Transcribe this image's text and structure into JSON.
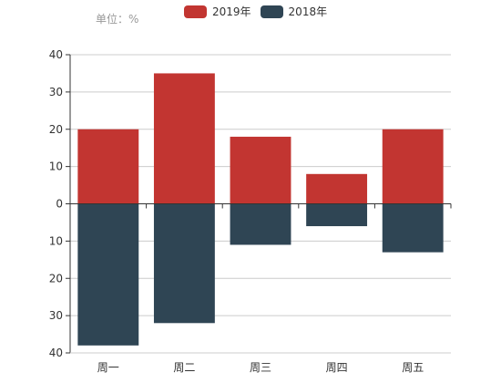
{
  "unit_text": "单位：%",
  "legend": [
    {
      "name": "2019年",
      "color": "#c23531"
    },
    {
      "name": "2018年",
      "color": "#2f4554"
    }
  ],
  "chart_data": {
    "type": "bar",
    "categories": [
      "周一",
      "周二",
      "周三",
      "周四",
      "周五"
    ],
    "series": [
      {
        "name": "2019年",
        "values": [
          20,
          35,
          18,
          8,
          20
        ],
        "color": "#c23531"
      },
      {
        "name": "2018年",
        "values": [
          -38,
          -32,
          -11,
          -6,
          -13
        ],
        "color": "#2f4554"
      }
    ],
    "ylim": [
      -40,
      40
    ],
    "yticks": [
      40,
      30,
      20,
      10,
      0,
      -10,
      -20,
      -30,
      -40
    ],
    "ytick_labels": [
      "40",
      "30",
      "20",
      "10",
      "0",
      "10",
      "20",
      "30",
      "40"
    ],
    "stacked": true,
    "grid": true,
    "legend_position": "top-center"
  }
}
